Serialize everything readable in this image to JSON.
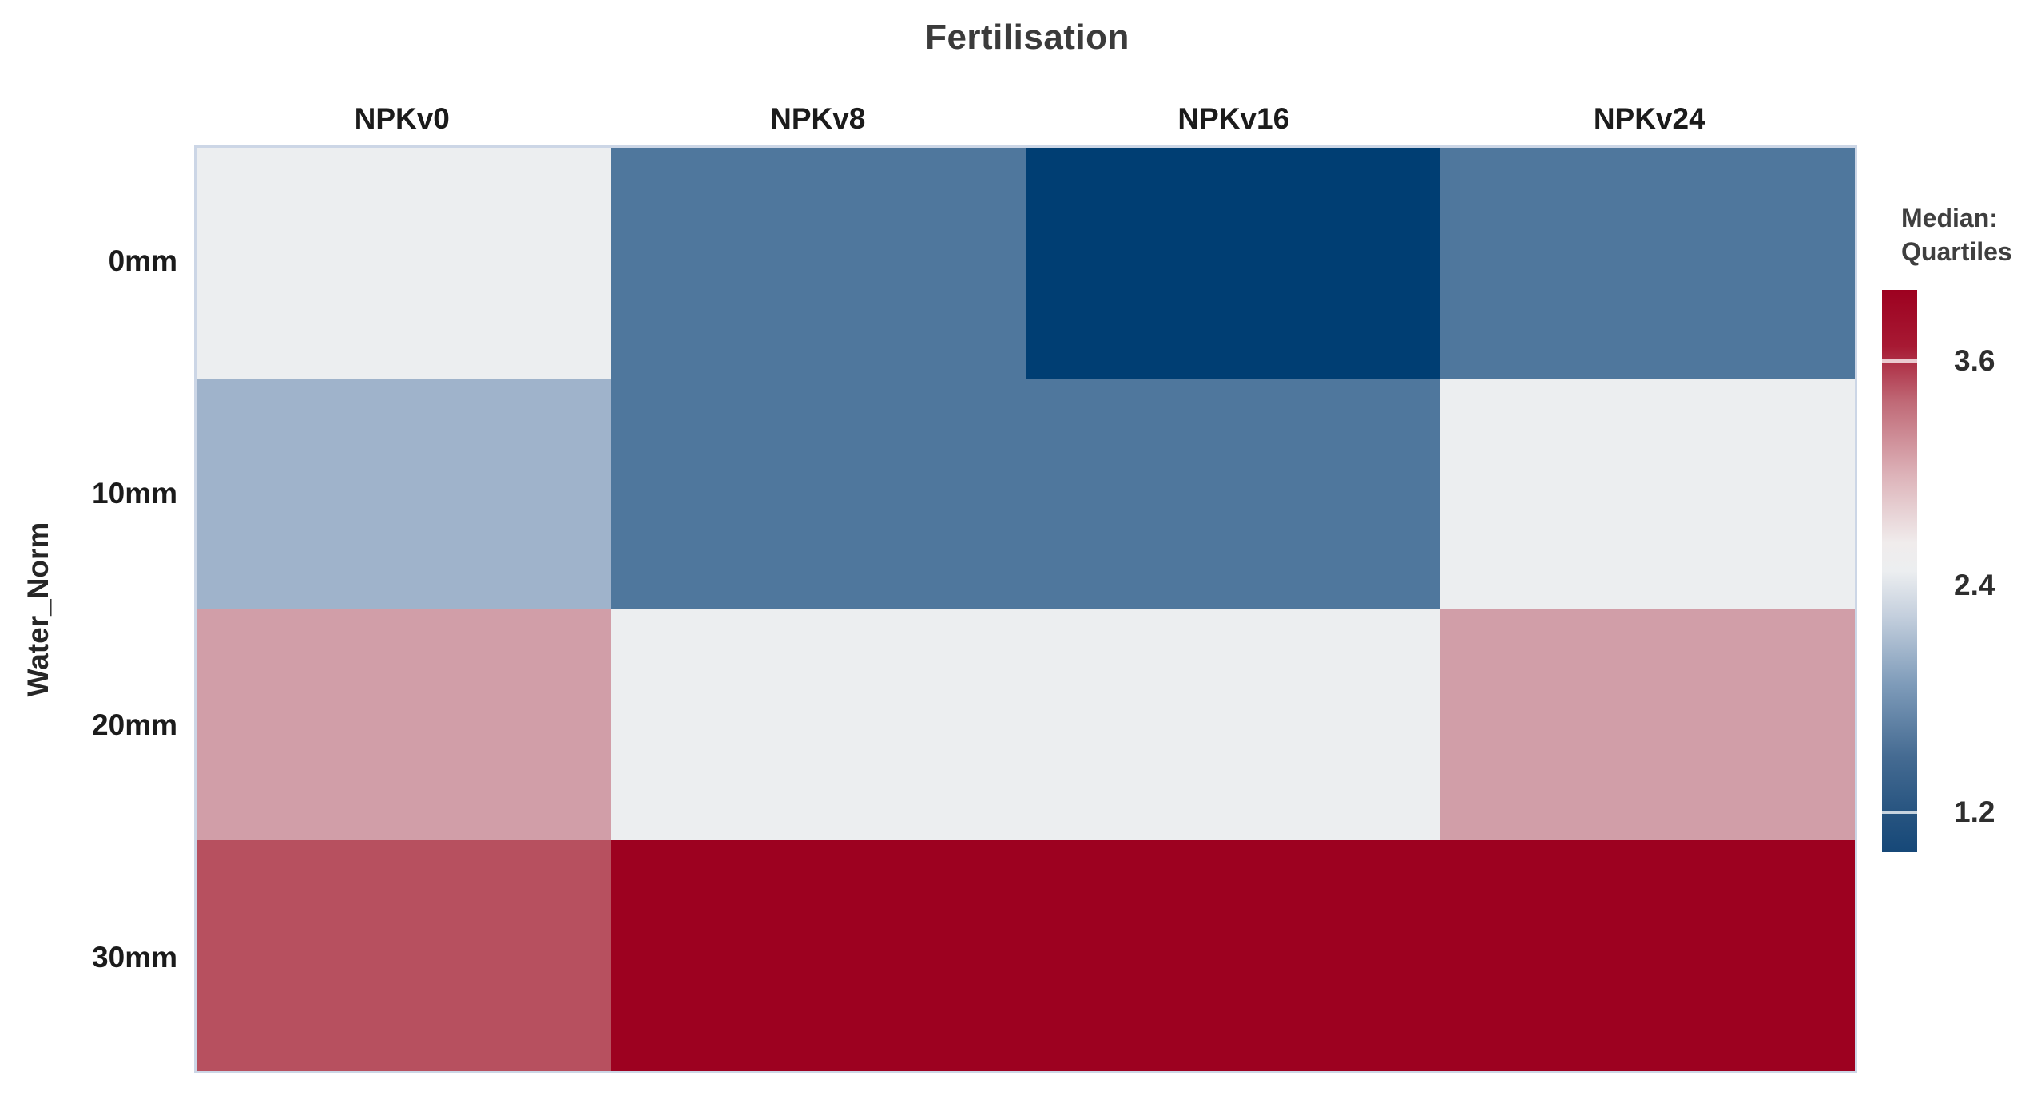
{
  "title": "Fertilisation",
  "y_axis_label": "Water_Norm",
  "legend": {
    "title_line1": "Median:",
    "title_line2": "Quartiles",
    "ticks": [
      "3.6",
      "2.4",
      "1.2"
    ]
  },
  "chart_data": {
    "type": "heatmap",
    "title": "Fertilisation",
    "xlabel": "Fertilisation",
    "ylabel": "Water_Norm",
    "legend_title": "Median: Quartiles",
    "columns": [
      "NPKv0",
      "NPKv8",
      "NPKv16",
      "NPKv24"
    ],
    "rows": [
      "0mm",
      "10mm",
      "20mm",
      "30mm"
    ],
    "colorbar_ticks": [
      3.6,
      2.4,
      1.2
    ],
    "colorbar_range": [
      1.0,
      4.0
    ],
    "values": [
      [
        2.4,
        1.5,
        1.0,
        1.5
      ],
      [
        2.0,
        1.5,
        1.5,
        2.4
      ],
      [
        3.0,
        2.4,
        2.4,
        3.0
      ],
      [
        3.5,
        4.0,
        4.0,
        4.0
      ]
    ],
    "cell_colors": [
      [
        "#eceef0",
        "#4f779d",
        "#003e73",
        "#4f779d"
      ],
      [
        "#9fb3cb",
        "#4f779d",
        "#4f779d",
        "#eceef0"
      ],
      [
        "#d19ea8",
        "#eceef0",
        "#eceef0",
        "#d19ea8"
      ],
      [
        "#b7505f",
        "#9d0120",
        "#9d0120",
        "#9d0120"
      ]
    ],
    "colorbar_gradient_stops": [
      {
        "pos": 0.0,
        "color": "#9d0120"
      },
      {
        "pos": 0.1,
        "color": "#a71933"
      },
      {
        "pos": 0.2,
        "color": "#c06a77"
      },
      {
        "pos": 0.33,
        "color": "#ddb3b9"
      },
      {
        "pos": 0.45,
        "color": "#f0ecec"
      },
      {
        "pos": 0.5,
        "color": "#eceef0"
      },
      {
        "pos": 0.58,
        "color": "#c4cfdd"
      },
      {
        "pos": 0.7,
        "color": "#7f9cba"
      },
      {
        "pos": 0.83,
        "color": "#456b92"
      },
      {
        "pos": 0.93,
        "color": "#275480"
      },
      {
        "pos": 1.0,
        "color": "#164878"
      }
    ],
    "colorbar_separator_positions": [
      0.126,
      0.929
    ],
    "plot_border_color": "#ccd6e6"
  }
}
